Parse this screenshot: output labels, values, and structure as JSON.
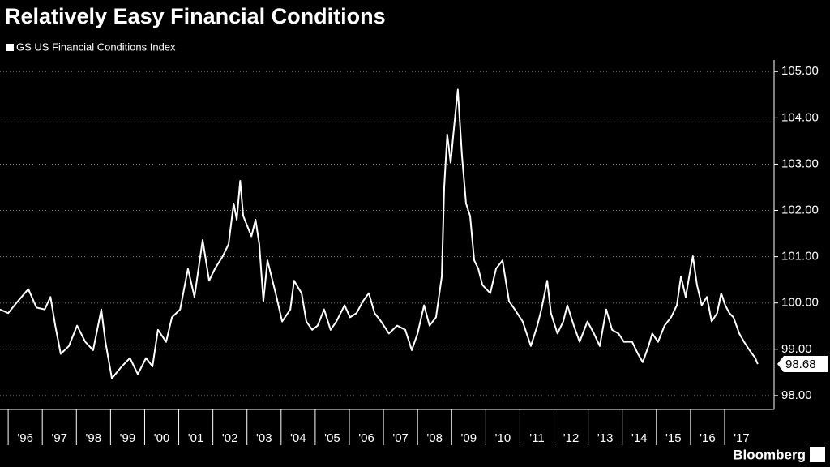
{
  "chart_data": {
    "type": "line",
    "title": "Relatively Easy Financial Conditions",
    "source": "Bloomberg",
    "xlim": [
      1995.76,
      2018.45
    ],
    "ylim": [
      97.7,
      105.25
    ],
    "xticks": [
      {
        "value": 1996,
        "label": "'96"
      },
      {
        "value": 1997,
        "label": "'97"
      },
      {
        "value": 1998,
        "label": "'98"
      },
      {
        "value": 1999,
        "label": "'99"
      },
      {
        "value": 2000,
        "label": "'00"
      },
      {
        "value": 2001,
        "label": "'01"
      },
      {
        "value": 2002,
        "label": "'02"
      },
      {
        "value": 2003,
        "label": "'03"
      },
      {
        "value": 2004,
        "label": "'04"
      },
      {
        "value": 2005,
        "label": "'05"
      },
      {
        "value": 2006,
        "label": "'06"
      },
      {
        "value": 2007,
        "label": "'07"
      },
      {
        "value": 2008,
        "label": "'08"
      },
      {
        "value": 2009,
        "label": "'09"
      },
      {
        "value": 2010,
        "label": "'10"
      },
      {
        "value": 2011,
        "label": "'11"
      },
      {
        "value": 2012,
        "label": "'12"
      },
      {
        "value": 2013,
        "label": "'13"
      },
      {
        "value": 2014,
        "label": "'14"
      },
      {
        "value": 2015,
        "label": "'15"
      },
      {
        "value": 2016,
        "label": "'16"
      },
      {
        "value": 2017,
        "label": "'17"
      }
    ],
    "yticks": [
      {
        "value": 98,
        "label": "98.00"
      },
      {
        "value": 99,
        "label": "99.00"
      },
      {
        "value": 100,
        "label": "100.00"
      },
      {
        "value": 101,
        "label": "101.00"
      },
      {
        "value": 102,
        "label": "102.00"
      },
      {
        "value": 103,
        "label": "103.00"
      },
      {
        "value": 104,
        "label": "104.00"
      },
      {
        "value": 105,
        "label": "105.00"
      }
    ],
    "grid": true,
    "x": [
      1995.76,
      1996.0,
      1996.24,
      1996.59,
      1996.83,
      1997.07,
      1997.24,
      1997.38,
      1997.54,
      1997.78,
      1998.02,
      1998.26,
      1998.49,
      1998.73,
      1998.85,
      1999.04,
      1999.33,
      1999.57,
      1999.8,
      2000.04,
      2000.23,
      2000.39,
      2000.63,
      2000.8,
      2001.04,
      2001.27,
      2001.46,
      2001.7,
      2001.89,
      2002.06,
      2002.29,
      2002.46,
      2002.61,
      2002.7,
      2002.8,
      2002.89,
      2003.13,
      2003.25,
      2003.36,
      2003.48,
      2003.6,
      2003.84,
      2004.03,
      2004.27,
      2004.38,
      2004.6,
      2004.74,
      2004.91,
      2005.07,
      2005.26,
      2005.45,
      2005.62,
      2005.86,
      2006.02,
      2006.21,
      2006.4,
      2006.57,
      2006.74,
      2006.93,
      2007.16,
      2007.4,
      2007.64,
      2007.83,
      2008.0,
      2008.19,
      2008.35,
      2008.54,
      2008.71,
      2008.78,
      2008.87,
      2008.97,
      2009.06,
      2009.18,
      2009.3,
      2009.42,
      2009.54,
      2009.66,
      2009.78,
      2009.9,
      2010.13,
      2010.3,
      2010.49,
      2010.68,
      2010.85,
      2011.08,
      2011.32,
      2011.51,
      2011.63,
      2011.8,
      2011.91,
      2012.1,
      2012.27,
      2012.39,
      2012.58,
      2012.75,
      2012.98,
      2013.17,
      2013.34,
      2013.53,
      2013.7,
      2013.89,
      2014.05,
      2014.29,
      2014.46,
      2014.6,
      2014.77,
      2014.88,
      2015.05,
      2015.24,
      2015.43,
      2015.6,
      2015.72,
      2015.86,
      2016.0,
      2016.07,
      2016.19,
      2016.33,
      2016.48,
      2016.62,
      2016.78,
      2016.9,
      2017.02,
      2017.14,
      2017.26,
      2017.43,
      2017.57,
      2017.73,
      2017.9,
      2017.97
    ],
    "series": [
      {
        "name": "GS US Financial Conditions Index",
        "color": "#ffffff",
        "values": [
          99.86,
          99.78,
          100.0,
          100.3,
          99.9,
          99.86,
          100.13,
          99.51,
          98.9,
          99.07,
          99.51,
          99.16,
          98.98,
          99.86,
          99.16,
          98.37,
          98.63,
          98.81,
          98.46,
          98.81,
          98.63,
          99.42,
          99.16,
          99.69,
          99.86,
          100.74,
          100.13,
          101.36,
          100.48,
          100.74,
          101.01,
          101.27,
          102.15,
          101.8,
          102.64,
          101.88,
          101.44,
          101.8,
          101.27,
          100.04,
          100.92,
          100.21,
          99.6,
          99.86,
          100.48,
          100.21,
          99.6,
          99.42,
          99.51,
          99.86,
          99.42,
          99.6,
          99.95,
          99.69,
          99.78,
          100.04,
          100.21,
          99.78,
          99.6,
          99.34,
          99.51,
          99.42,
          98.98,
          99.34,
          99.95,
          99.51,
          99.69,
          100.57,
          102.5,
          103.64,
          103.03,
          103.73,
          104.61,
          103.2,
          102.15,
          101.88,
          100.92,
          100.74,
          100.39,
          100.21,
          100.74,
          100.92,
          100.04,
          99.86,
          99.6,
          99.07,
          99.51,
          99.86,
          100.48,
          99.78,
          99.34,
          99.6,
          99.95,
          99.51,
          99.16,
          99.6,
          99.34,
          99.07,
          99.86,
          99.42,
          99.34,
          99.16,
          99.16,
          98.9,
          98.72,
          99.07,
          99.34,
          99.16,
          99.51,
          99.69,
          99.95,
          100.57,
          100.13,
          100.74,
          101.01,
          100.39,
          99.95,
          100.13,
          99.6,
          99.78,
          100.21,
          99.95,
          99.78,
          99.69,
          99.34,
          99.16,
          98.98,
          98.81,
          98.68
        ]
      }
    ]
  }
}
